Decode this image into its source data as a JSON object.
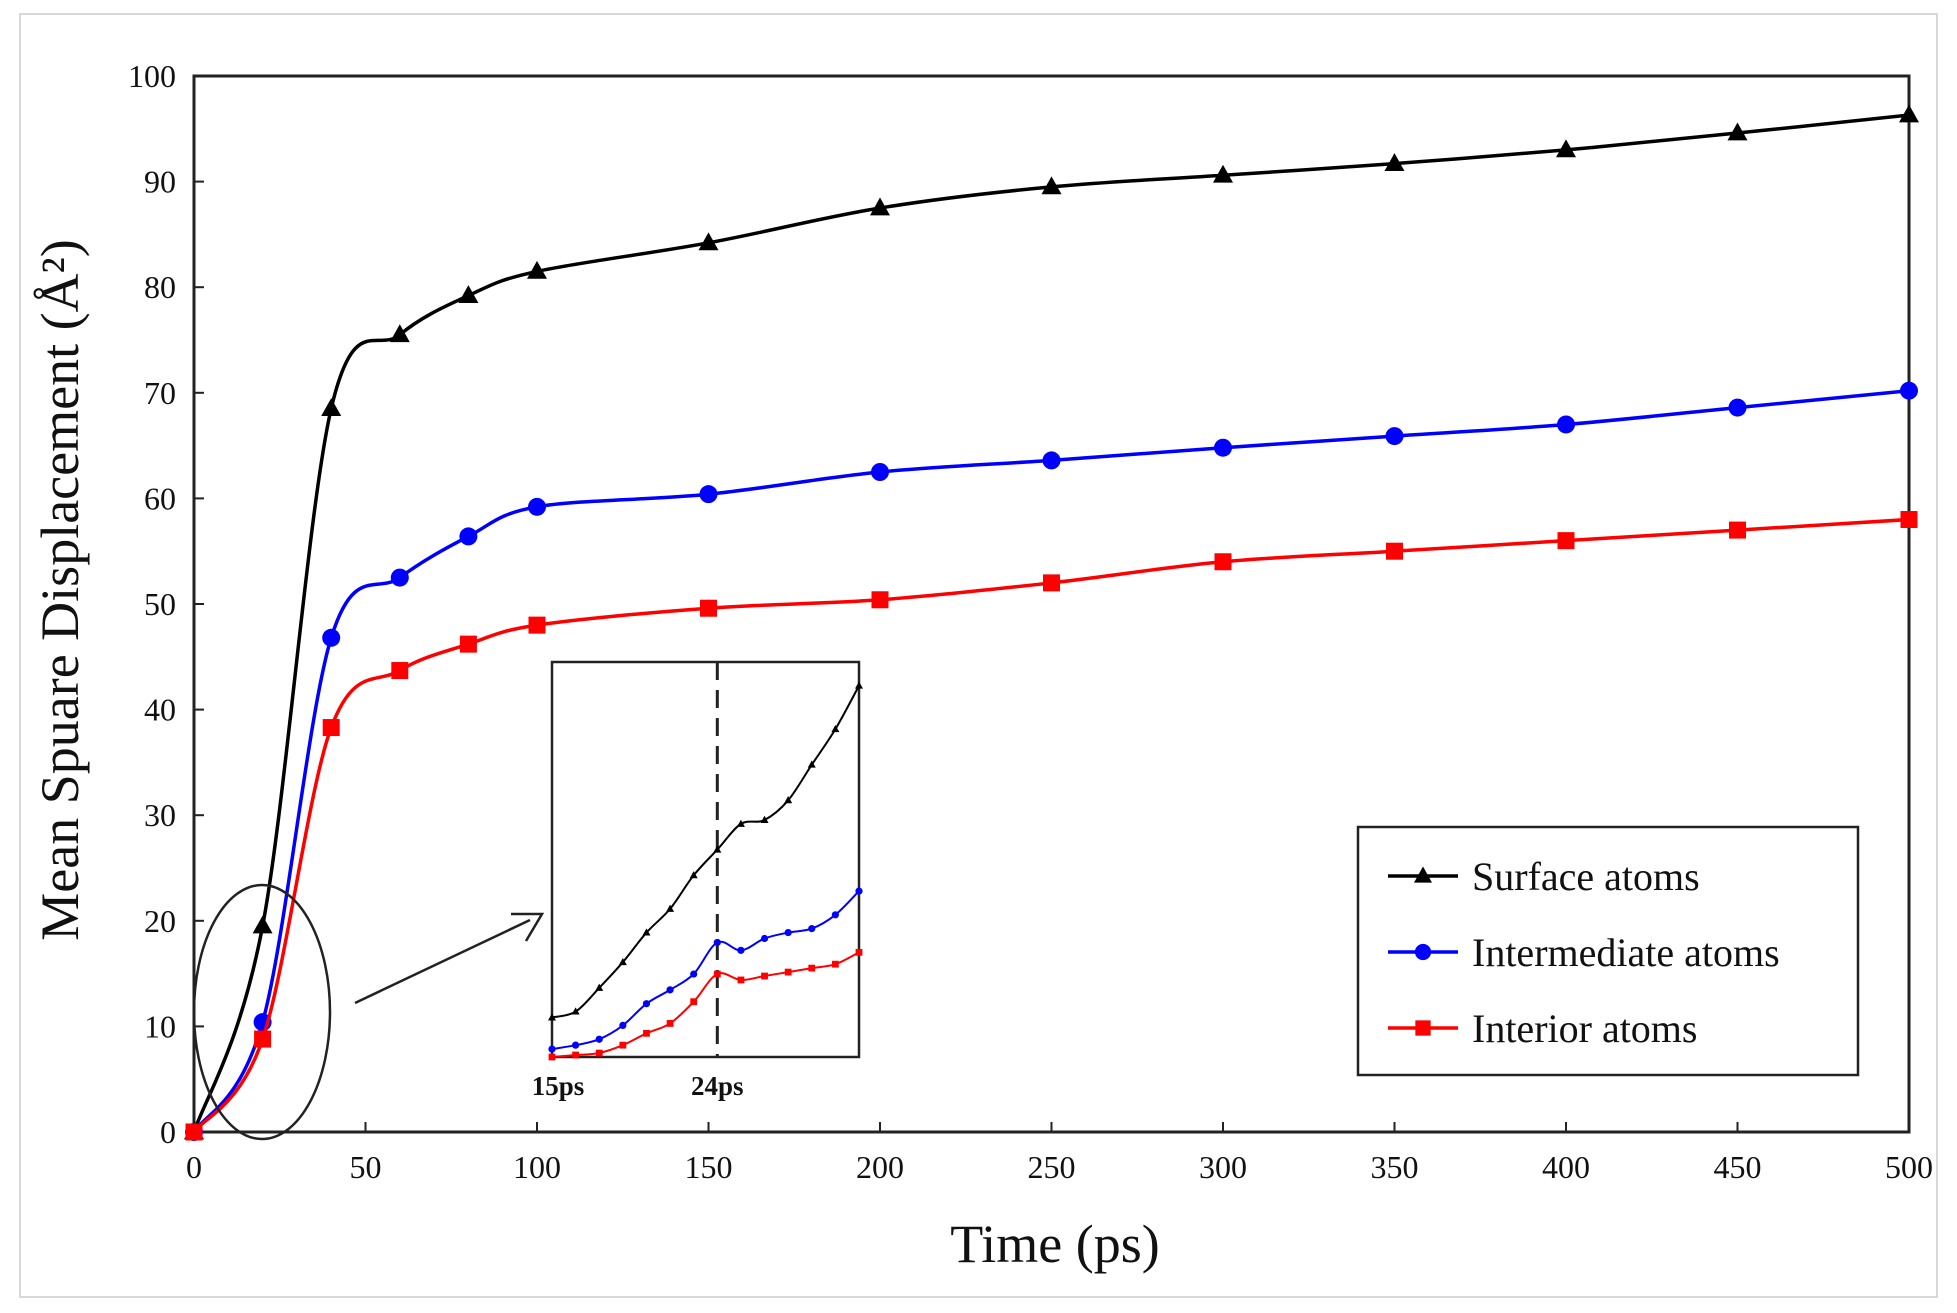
{
  "chart_data": {
    "type": "line",
    "title": "",
    "xlabel": "Time (ps)",
    "ylabel": "Mean Spuare Displacement (Å²)",
    "xlim": [
      0,
      500
    ],
    "ylim": [
      0,
      100
    ],
    "xticks": [
      0,
      50,
      100,
      150,
      200,
      250,
      300,
      350,
      400,
      450,
      500
    ],
    "yticks": [
      0,
      10,
      20,
      30,
      40,
      50,
      60,
      70,
      80,
      90,
      100
    ],
    "grid": false,
    "legend_position": "lower-right",
    "x": [
      0,
      20,
      40,
      60,
      80,
      100,
      150,
      200,
      250,
      300,
      350,
      400,
      450,
      500
    ],
    "series": [
      {
        "name": "Surface atoms",
        "color": "#000000",
        "marker": "triangle",
        "values": [
          0,
          19.5,
          68.5,
          75.5,
          79.2,
          81.5,
          84.2,
          87.5,
          89.5,
          90.6,
          91.7,
          93.0,
          94.6,
          96.3
        ]
      },
      {
        "name": "Intermediate atoms",
        "color": "#0000ff",
        "marker": "circle",
        "values": [
          0,
          10.4,
          46.8,
          52.5,
          56.4,
          59.2,
          60.4,
          62.5,
          63.6,
          64.8,
          65.9,
          67.0,
          68.6,
          70.2
        ]
      },
      {
        "name": "Interior atoms",
        "color": "#ff0000",
        "marker": "square",
        "values": [
          0,
          8.8,
          38.3,
          43.7,
          46.2,
          48.0,
          49.6,
          50.4,
          52.0,
          54.0,
          55.0,
          56.0,
          57.0,
          58.0
        ]
      }
    ],
    "inset": {
      "tick_labels": [
        "15ps",
        "24ps"
      ],
      "marker_line_label": "24ps",
      "series": [
        {
          "name": "Surface atoms",
          "values": [
            2.0,
            2.3,
            3.5,
            4.8,
            6.3,
            7.5,
            9.2,
            10.5,
            11.8,
            12.0,
            13.0,
            14.8,
            16.6,
            18.8
          ]
        },
        {
          "name": "Intermediate atoms",
          "values": [
            0.4,
            0.6,
            0.9,
            1.6,
            2.7,
            3.4,
            4.2,
            5.8,
            5.4,
            6.0,
            6.3,
            6.5,
            7.2,
            8.4
          ]
        },
        {
          "name": "Interior atoms",
          "values": [
            0.0,
            0.1,
            0.2,
            0.6,
            1.2,
            1.7,
            2.8,
            4.2,
            3.9,
            4.1,
            4.3,
            4.5,
            4.7,
            5.3
          ]
        }
      ]
    }
  }
}
